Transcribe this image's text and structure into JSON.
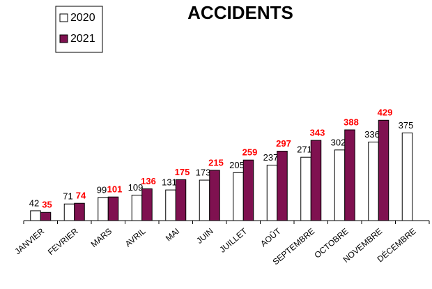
{
  "chart_data": {
    "type": "bar",
    "title": "ACCIDENTS",
    "categories": [
      "JANVIER",
      "FEVRIER",
      "MARS",
      "AVRIL",
      "MAI",
      "JUIN",
      "JUILLET",
      "AOÛT",
      "SEPTEMBRE",
      "OCTOBRE",
      "NOVEMBRE",
      "DÉCEMBRE"
    ],
    "series": [
      {
        "name": "2020",
        "color": "#ffffff",
        "values": [
          42,
          71,
          99,
          109,
          131,
          173,
          205,
          237,
          271,
          302,
          336,
          375
        ]
      },
      {
        "name": "2021",
        "color": "#7f1150",
        "values": [
          35,
          74,
          101,
          136,
          175,
          215,
          259,
          297,
          343,
          388,
          429,
          null
        ]
      }
    ],
    "ylim": [
      0,
      600
    ],
    "legend": "top-left"
  }
}
